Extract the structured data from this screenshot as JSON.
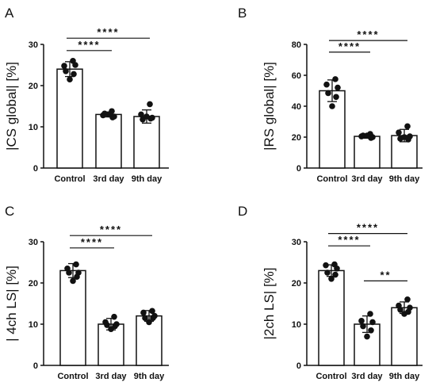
{
  "chart_data": [
    {
      "panel": "A",
      "type": "bar",
      "ylabel": "|CS global| [%]",
      "ylim": [
        0,
        30
      ],
      "yticks": [
        0,
        10,
        20,
        30
      ],
      "categories": [
        "Control",
        "3rd day",
        "9th day"
      ],
      "values": [
        24.0,
        13.0,
        12.5
      ],
      "errors": [
        1.8,
        0.6,
        1.6
      ],
      "points": [
        [
          26.0,
          24.8,
          25.0,
          23.5,
          22.8,
          21.5
        ],
        [
          13.8,
          12.8,
          12.5,
          13.2,
          12.3,
          13.0
        ],
        [
          15.5,
          13.0,
          12.2,
          11.8,
          12.0,
          12.5
        ]
      ],
      "significance": [
        {
          "from": 0,
          "to": 2,
          "label": "****",
          "y": 31.5
        },
        {
          "from": 0,
          "to": 1,
          "label": "****",
          "y": 28.5
        }
      ]
    },
    {
      "panel": "B",
      "type": "bar",
      "ylabel": "|RS global| [%]",
      "ylim": [
        0,
        80
      ],
      "yticks": [
        0,
        20,
        40,
        60,
        80
      ],
      "categories": [
        "Control",
        "3rd day",
        "9th day"
      ],
      "values": [
        50.0,
        20.5,
        21.0
      ],
      "errors": [
        7.0,
        1.2,
        4.0
      ],
      "points": [
        [
          57.5,
          54.0,
          52.0,
          48.5,
          46.0,
          40.0
        ],
        [
          22.0,
          20.5,
          20.0,
          21.0,
          19.5,
          21.0
        ],
        [
          27.0,
          23.0,
          20.5,
          19.0,
          18.5,
          20.0
        ]
      ],
      "significance": [
        {
          "from": 0,
          "to": 2,
          "label": "****",
          "y": 82.5
        },
        {
          "from": 0,
          "to": 1,
          "label": "****",
          "y": 75.0
        }
      ]
    },
    {
      "panel": "C",
      "type": "bar",
      "ylabel": "| 4ch LS| [%]",
      "ylim": [
        0,
        30
      ],
      "yticks": [
        0,
        10,
        20,
        30
      ],
      "categories": [
        "Control",
        "3rd day",
        "9th day"
      ],
      "values": [
        23.0,
        10.0,
        12.0
      ],
      "errors": [
        1.7,
        1.4,
        1.3
      ],
      "points": [
        [
          24.5,
          23.5,
          22.5,
          22.5,
          21.5,
          20.5
        ],
        [
          11.8,
          10.5,
          10.0,
          9.8,
          9.5,
          8.8
        ],
        [
          13.2,
          12.8,
          12.0,
          11.5,
          11.5,
          10.5
        ]
      ],
      "significance": [
        {
          "from": 0,
          "to": 2,
          "label": "****",
          "y": 31.5
        },
        {
          "from": 0,
          "to": 1,
          "label": "****",
          "y": 28.5
        }
      ]
    },
    {
      "panel": "D",
      "type": "bar",
      "ylabel": "|2ch LS| [%]",
      "ylim": [
        0,
        30
      ],
      "yticks": [
        0,
        10,
        20,
        30
      ],
      "categories": [
        "Control",
        "3rd day",
        "9th day"
      ],
      "values": [
        23.0,
        10.0,
        14.0
      ],
      "errors": [
        1.4,
        2.0,
        1.4
      ],
      "points": [
        [
          24.5,
          24.3,
          23.5,
          22.5,
          22.0,
          21.0
        ],
        [
          12.5,
          10.8,
          10.5,
          9.5,
          8.5,
          7.0
        ],
        [
          16.0,
          14.5,
          14.0,
          13.5,
          13.0,
          12.5
        ]
      ],
      "significance": [
        {
          "from": 0,
          "to": 2,
          "label": "****",
          "y": 32.0
        },
        {
          "from": 0,
          "to": 1,
          "label": "****",
          "y": 29.0
        },
        {
          "from": 1,
          "to": 2,
          "label": "**",
          "y": 20.5
        }
      ]
    }
  ]
}
